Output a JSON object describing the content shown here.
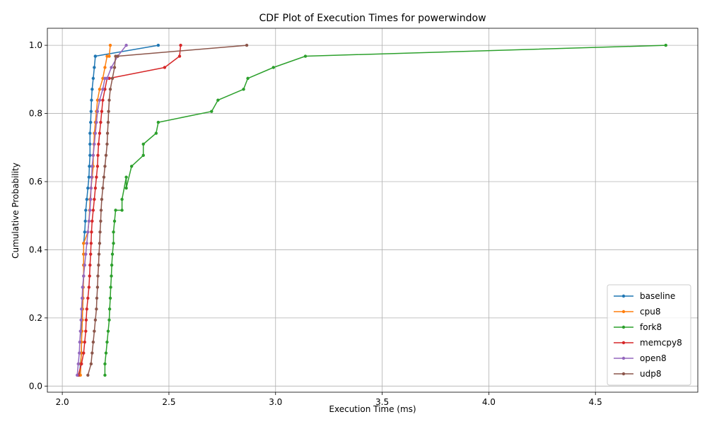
{
  "chart_data": {
    "type": "line",
    "title": "CDF Plot of Execution Times for powerwindow",
    "xlabel": "Execution Time (ms)",
    "ylabel": "Cumulative Probability",
    "xlim": [
      1.93,
      4.98
    ],
    "ylim": [
      -0.018,
      1.05
    ],
    "xticks": [
      "2.0",
      "2.5",
      "3.0",
      "3.5",
      "4.0",
      "4.5"
    ],
    "yticks": [
      "0.0",
      "0.2",
      "0.4",
      "0.6",
      "0.8",
      "1.0"
    ],
    "grid": true,
    "legend_position": "bottom-right",
    "series": [
      {
        "name": "baseline",
        "color": "#1f77b4",
        "x": [
          2.08,
          2.085,
          2.09,
          2.09,
          2.09,
          2.092,
          2.095,
          2.097,
          2.098,
          2.1,
          2.1,
          2.1,
          2.1,
          2.105,
          2.108,
          2.11,
          2.115,
          2.12,
          2.125,
          2.127,
          2.13,
          2.13,
          2.13,
          2.133,
          2.135,
          2.137,
          2.14,
          2.145,
          2.15,
          2.155,
          2.155,
          2.45
        ],
        "y": [
          0.032,
          0.065,
          0.097,
          0.129,
          0.161,
          0.194,
          0.226,
          0.258,
          0.29,
          0.323,
          0.355,
          0.387,
          0.419,
          0.452,
          0.484,
          0.516,
          0.548,
          0.581,
          0.613,
          0.645,
          0.677,
          0.71,
          0.742,
          0.774,
          0.806,
          0.839,
          0.871,
          0.903,
          0.935,
          0.968,
          0.968,
          1.0
        ]
      },
      {
        "name": "cpu8",
        "color": "#ff7f0e",
        "x": [
          2.085,
          2.087,
          2.089,
          2.09,
          2.092,
          2.094,
          2.095,
          2.097,
          2.098,
          2.1,
          2.1,
          2.1,
          2.1,
          2.12,
          2.125,
          2.128,
          2.13,
          2.135,
          2.14,
          2.145,
          2.145,
          2.148,
          2.15,
          2.155,
          2.16,
          2.165,
          2.175,
          2.19,
          2.2,
          2.21,
          2.22,
          2.225
        ],
        "y": [
          0.032,
          0.065,
          0.097,
          0.129,
          0.161,
          0.194,
          0.226,
          0.258,
          0.29,
          0.323,
          0.355,
          0.387,
          0.419,
          0.452,
          0.484,
          0.516,
          0.548,
          0.581,
          0.613,
          0.645,
          0.677,
          0.71,
          0.742,
          0.774,
          0.806,
          0.839,
          0.871,
          0.903,
          0.935,
          0.968,
          0.968,
          1.0
        ]
      },
      {
        "name": "fork8",
        "color": "#2ca02c",
        "x": [
          2.2,
          2.2,
          2.205,
          2.21,
          2.215,
          2.22,
          2.222,
          2.225,
          2.227,
          2.23,
          2.232,
          2.235,
          2.24,
          2.24,
          2.245,
          2.25,
          2.28,
          2.28,
          2.3,
          2.3,
          2.325,
          2.38,
          2.38,
          2.44,
          2.45,
          2.7,
          2.73,
          2.85,
          2.87,
          2.99,
          3.14,
          4.83
        ],
        "y": [
          0.032,
          0.065,
          0.097,
          0.129,
          0.161,
          0.194,
          0.226,
          0.258,
          0.29,
          0.323,
          0.355,
          0.387,
          0.419,
          0.452,
          0.484,
          0.516,
          0.516,
          0.548,
          0.613,
          0.581,
          0.645,
          0.677,
          0.71,
          0.742,
          0.774,
          0.806,
          0.839,
          0.871,
          0.903,
          0.935,
          0.968,
          1.0
        ]
      },
      {
        "name": "memcpy8",
        "color": "#d62728",
        "x": [
          2.075,
          2.09,
          2.1,
          2.105,
          2.11,
          2.112,
          2.115,
          2.12,
          2.125,
          2.128,
          2.13,
          2.133,
          2.135,
          2.137,
          2.14,
          2.145,
          2.15,
          2.155,
          2.16,
          2.165,
          2.167,
          2.17,
          2.175,
          2.18,
          2.185,
          2.19,
          2.2,
          2.21,
          2.22,
          2.48,
          2.55,
          2.555
        ],
        "y": [
          0.032,
          0.065,
          0.097,
          0.129,
          0.161,
          0.194,
          0.226,
          0.258,
          0.29,
          0.323,
          0.355,
          0.387,
          0.419,
          0.452,
          0.484,
          0.516,
          0.548,
          0.581,
          0.613,
          0.645,
          0.677,
          0.71,
          0.742,
          0.774,
          0.806,
          0.839,
          0.871,
          0.903,
          0.903,
          0.935,
          0.968,
          1.0
        ]
      },
      {
        "name": "open8",
        "color": "#9467bd",
        "x": [
          2.07,
          2.075,
          2.08,
          2.082,
          2.085,
          2.088,
          2.09,
          2.093,
          2.095,
          2.1,
          2.105,
          2.11,
          2.115,
          2.12,
          2.125,
          2.13,
          2.133,
          2.135,
          2.138,
          2.14,
          2.145,
          2.15,
          2.155,
          2.16,
          2.165,
          2.175,
          2.19,
          2.2,
          2.21,
          2.23,
          2.26,
          2.3
        ],
        "y": [
          0.032,
          0.065,
          0.097,
          0.129,
          0.161,
          0.194,
          0.226,
          0.258,
          0.29,
          0.323,
          0.355,
          0.387,
          0.419,
          0.452,
          0.484,
          0.516,
          0.548,
          0.581,
          0.613,
          0.645,
          0.677,
          0.71,
          0.742,
          0.774,
          0.806,
          0.839,
          0.871,
          0.903,
          0.903,
          0.935,
          0.968,
          1.0
        ]
      },
      {
        "name": "udp8",
        "color": "#8c564b",
        "x": [
          2.12,
          2.135,
          2.14,
          2.145,
          2.15,
          2.155,
          2.16,
          2.162,
          2.165,
          2.167,
          2.17,
          2.172,
          2.175,
          2.177,
          2.18,
          2.182,
          2.185,
          2.19,
          2.195,
          2.2,
          2.205,
          2.21,
          2.212,
          2.215,
          2.217,
          2.22,
          2.225,
          2.235,
          2.245,
          2.25,
          2.26,
          2.865
        ],
        "y": [
          0.032,
          0.065,
          0.097,
          0.129,
          0.161,
          0.194,
          0.226,
          0.258,
          0.29,
          0.323,
          0.355,
          0.387,
          0.419,
          0.452,
          0.484,
          0.516,
          0.548,
          0.581,
          0.613,
          0.645,
          0.677,
          0.71,
          0.742,
          0.774,
          0.806,
          0.839,
          0.871,
          0.903,
          0.935,
          0.968,
          0.968,
          1.0
        ]
      }
    ]
  }
}
